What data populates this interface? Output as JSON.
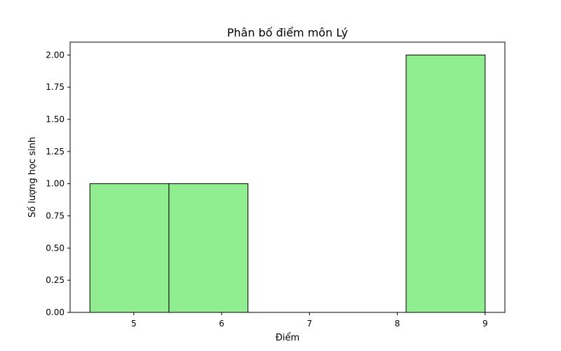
{
  "chart_data": {
    "type": "bar",
    "title": "Phân bố điểm môn Lý",
    "xlabel": "Điểm",
    "ylabel": "Số lượng học sinh",
    "bins": [
      {
        "start": 4.5,
        "end": 5.4,
        "count": 1
      },
      {
        "start": 5.4,
        "end": 6.3,
        "count": 1
      },
      {
        "start": 6.3,
        "end": 7.2,
        "count": 0
      },
      {
        "start": 7.2,
        "end": 8.1,
        "count": 0
      },
      {
        "start": 8.1,
        "end": 9.0,
        "count": 2
      }
    ],
    "xlim": [
      4.275,
      9.225
    ],
    "ylim": [
      0,
      2.1
    ],
    "xticks": [
      5,
      6,
      7,
      8,
      9
    ],
    "xtick_labels": [
      "5",
      "6",
      "7",
      "8",
      "9"
    ],
    "yticks": [
      0,
      0.25,
      0.5,
      0.75,
      1.0,
      1.25,
      1.5,
      1.75,
      2.0
    ],
    "ytick_labels": [
      "0.00",
      "0.25",
      "0.50",
      "0.75",
      "1.00",
      "1.25",
      "1.50",
      "1.75",
      "2.00"
    ],
    "bar_color": "#90ee90",
    "edge_color": "#000000",
    "grid": false,
    "legend": "none"
  }
}
